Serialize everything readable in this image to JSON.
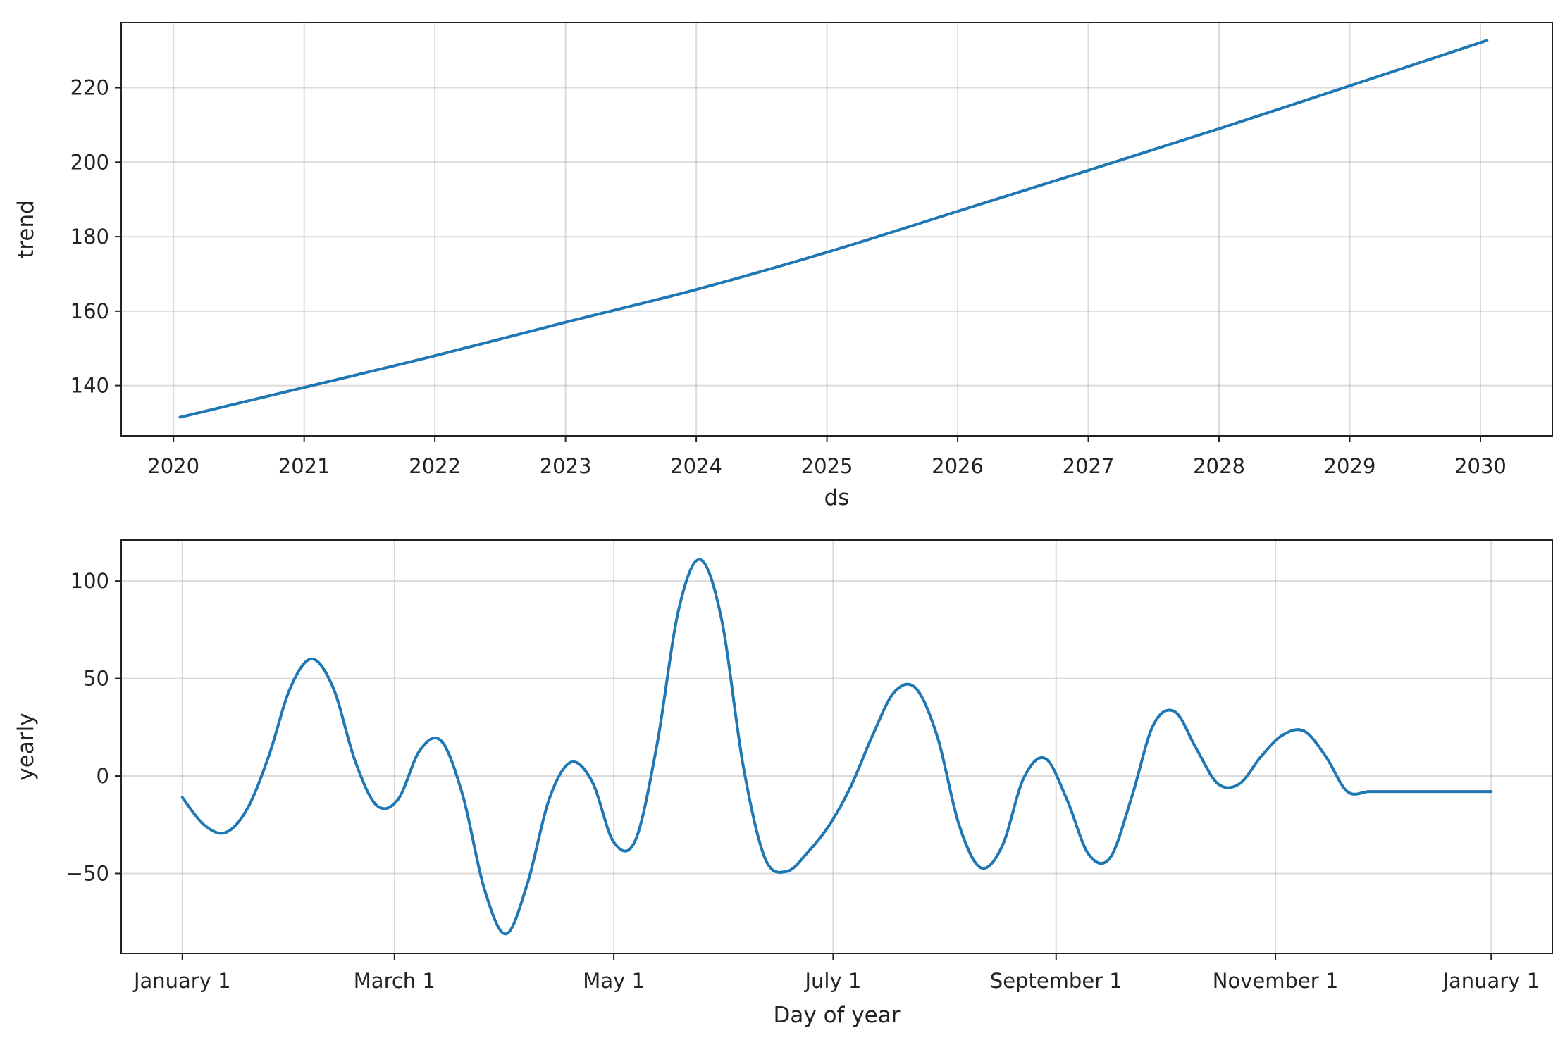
{
  "colors": {
    "series": "#1f77b4"
  },
  "chart_data": [
    {
      "type": "line",
      "xlabel": "ds",
      "ylabel": "trend",
      "x_ticks": [
        "2020",
        "2021",
        "2022",
        "2023",
        "2024",
        "2025",
        "2026",
        "2027",
        "2028",
        "2029",
        "2030"
      ],
      "x_range": [
        2019.6,
        2030.55
      ],
      "y_ticks": [
        "140",
        "160",
        "180",
        "200",
        "220"
      ],
      "y_tick_values": [
        140,
        160,
        180,
        200,
        220
      ],
      "ylim": [
        126.5,
        237.5
      ],
      "grid": true,
      "series": [
        {
          "x": [
            2020.05,
            2021.0,
            2022.0,
            2023.0,
            2024.0,
            2025.0,
            2026.0,
            2027.0,
            2028.0,
            2029.0,
            2030.05
          ],
          "values": [
            131.5,
            139.5,
            148.0,
            157.0,
            165.8,
            175.8,
            186.8,
            197.8,
            209.0,
            220.5,
            232.7
          ]
        }
      ]
    },
    {
      "type": "line",
      "xlabel": "Day of year",
      "ylabel": "yearly",
      "x_ticks": [
        "January 1",
        "March 1",
        "May 1",
        "July 1",
        "September 1",
        "November 1",
        "January 1"
      ],
      "x_tick_values": [
        0,
        59,
        120,
        181,
        243,
        304,
        364
      ],
      "x_range": [
        -17,
        381
      ],
      "y_ticks": [
        "100",
        "50",
        "0",
        "−50"
      ],
      "y_tick_values": [
        100,
        50,
        0,
        -50
      ],
      "ylim": [
        -91,
        121
      ],
      "grid": true,
      "series": [
        {
          "x": [
            0,
            6,
            12,
            18,
            24,
            30,
            36,
            42,
            48,
            54,
            60,
            66,
            72,
            78,
            84,
            90,
            96,
            102,
            108,
            114,
            120,
            126,
            132,
            138,
            144,
            150,
            156,
            162,
            168,
            174,
            180,
            186,
            192,
            198,
            204,
            210,
            216,
            222,
            228,
            234,
            240,
            246,
            252,
            258,
            264,
            270,
            276,
            282,
            288,
            294,
            300,
            306,
            312,
            318,
            324,
            330,
            336,
            342,
            348,
            354,
            360,
            364
          ],
          "values": [
            -11,
            -25,
            -29,
            -17,
            10,
            45,
            60,
            45,
            8,
            -15,
            -12,
            13,
            18,
            -10,
            -58,
            -81,
            -55,
            -12,
            7,
            -3,
            -34,
            -33,
            16,
            85,
            111,
            80,
            5,
            -42,
            -49,
            -39,
            -25,
            -5,
            21,
            43,
            45,
            20,
            -25,
            -47,
            -36,
            -1,
            9,
            -12,
            -40,
            -42,
            -11,
            26,
            33,
            14,
            -4,
            -4,
            10,
            21,
            23,
            10,
            -8,
            -8,
            -8,
            -8,
            -8,
            -8,
            -8,
            -8
          ]
        }
      ]
    }
  ]
}
